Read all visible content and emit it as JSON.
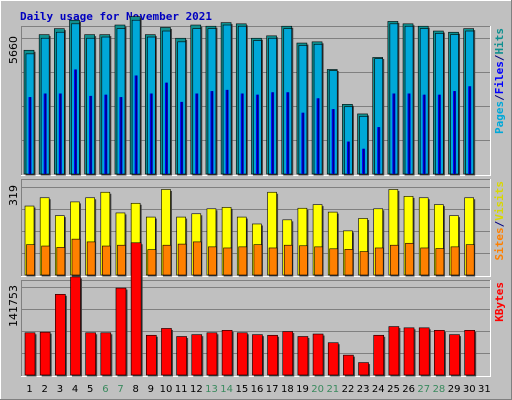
{
  "chart_data": {
    "type": "bar",
    "title": "Daily usage for November 2021",
    "title_color": "#0000c0",
    "x_ticks": [
      "1",
      "2",
      "3",
      "4",
      "5",
      "6",
      "7",
      "8",
      "9",
      "10",
      "11",
      "12",
      "13",
      "14",
      "15",
      "16",
      "17",
      "18",
      "19",
      "20",
      "21",
      "22",
      "23",
      "24",
      "25",
      "26",
      "27",
      "28",
      "29",
      "30",
      "31"
    ],
    "weekend_days": [
      "6",
      "7",
      "13",
      "14",
      "20",
      "21",
      "27",
      "28"
    ],
    "weekend_tick_color": "#3a8a5e",
    "weekday_tick_color": "#000000",
    "panels": [
      {
        "name": "hits-files-pages",
        "y_tick_label": "5660",
        "y_max": 5660,
        "legend": [
          {
            "text": "Pages",
            "color": "#00a8d8"
          },
          {
            "text": "/",
            "color": "#000080"
          },
          {
            "text": "Files",
            "color": "#0000ff"
          },
          {
            "text": "/",
            "color": "#000080"
          },
          {
            "text": "Hits",
            "color": "#109090"
          }
        ],
        "series": [
          {
            "name": "Hits",
            "color": "#109090",
            "values": [
              5150,
              5800,
              6050,
              6400,
              5800,
              5800,
              6200,
              6550,
              5800,
              6100,
              5650,
              6200,
              6150,
              6300,
              6250,
              5650,
              5750,
              6150,
              5450,
              5500,
              4350,
              2900,
              2500,
              4850,
              6350,
              6250,
              6150,
              5950,
              5900,
              6050,
              null
            ]
          },
          {
            "name": "Files",
            "color": "#00a8d8",
            "values": [
              5000,
              5650,
              5900,
              6250,
              5650,
              5700,
              6050,
              6400,
              5700,
              5950,
              5500,
              6050,
              6050,
              6200,
              6150,
              5550,
              5650,
              6050,
              5350,
              5400,
              4300,
              2800,
              2400,
              4800,
              6250,
              6150,
              6050,
              5850,
              5800,
              5950,
              null
            ]
          },
          {
            "name": "Pages",
            "color": "#0000ff",
            "values": [
              3200,
              3350,
              3350,
              4350,
              3250,
              3300,
              3200,
              4100,
              3350,
              3800,
              3000,
              3350,
              3450,
              3500,
              3350,
              3300,
              3400,
              3400,
              2550,
              3150,
              2700,
              1350,
              1050,
              1950,
              3350,
              3350,
              3300,
              3300,
              3450,
              3650,
              null
            ]
          }
        ]
      },
      {
        "name": "visits-sites",
        "y_tick_label": "319",
        "y_max": 319,
        "legend": [
          {
            "text": "Sites",
            "color": "#ff8000"
          },
          {
            "text": "/",
            "color": "#000080"
          },
          {
            "text": "Visits",
            "color": "#d8d800"
          }
        ],
        "series": [
          {
            "name": "Visits",
            "color": "#ffff00",
            "values": [
              250,
              280,
              215,
              265,
              280,
              300,
              225,
              260,
              210,
              310,
              210,
              222,
              240,
              245,
              210,
              185,
              300,
              200,
              242,
              255,
              228,
              160,
              205,
              240,
              310,
              285,
              280,
              255,
              215,
              280,
              null
            ]
          },
          {
            "name": "Sites",
            "color": "#ff8000",
            "values": [
              110,
              105,
              100,
              130,
              120,
              105,
              108,
              112,
              92,
              108,
              112,
              120,
              102,
              98,
              102,
              110,
              98,
              108,
              106,
              102,
              95,
              93,
              85,
              98,
              108,
              115,
              98,
              96,
              102,
              110,
              null
            ]
          }
        ]
      },
      {
        "name": "kbytes",
        "y_tick_label": "141753",
        "y_max": 141753,
        "legend": [
          {
            "text": "KBytes",
            "color": "#ff0000"
          }
        ],
        "series": [
          {
            "name": "KBytes",
            "color": "#ff0000",
            "values": [
              68000,
              69000,
              130000,
              158000,
              68000,
              68000,
              140000,
              213000,
              64000,
              75000,
              62000,
              65000,
              68000,
              72000,
              68000,
              65000,
              64000,
              70000,
              62000,
              66000,
              52000,
              32000,
              20000,
              64000,
              78000,
              76000,
              76000,
              72000,
              65000,
              72000,
              null
            ]
          }
        ]
      }
    ]
  }
}
